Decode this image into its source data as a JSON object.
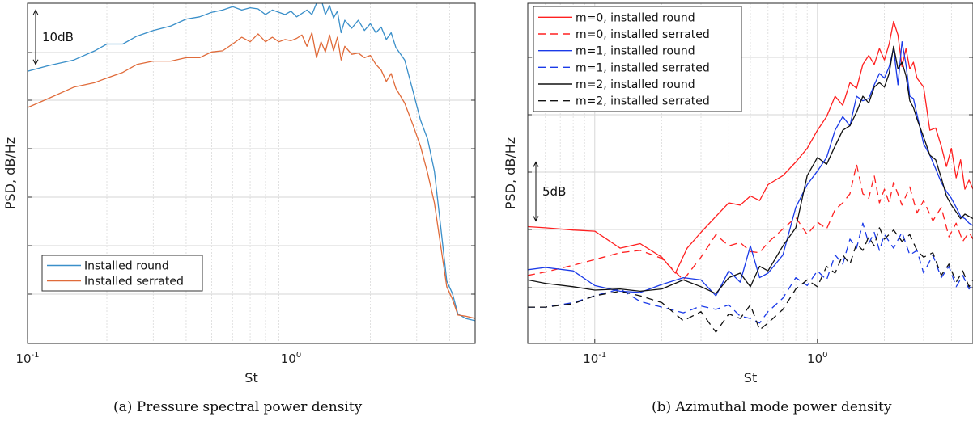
{
  "chart_data": [
    {
      "id": "a",
      "type": "line",
      "caption": "(a) Pressure spectral power density",
      "xlabel": "St",
      "ylabel": "PSD, dB/Hz",
      "xscale": "log",
      "xlim": [
        0.1,
        5.0
      ],
      "ylim": [
        0,
        30
      ],
      "grid": true,
      "xticks": [
        {
          "value": 0.1,
          "base": "10",
          "exp": "-1"
        },
        {
          "value": 1.0,
          "base": "10",
          "exp": "0"
        }
      ],
      "scale_marker": {
        "label": "10dB",
        "y_from": 29.4,
        "y_to": 24.6
      },
      "legend": {
        "position": "bottom-left"
      },
      "series": [
        {
          "name": "Installed round",
          "color": "#3a8fc9",
          "dash": "",
          "x": [
            0.1,
            0.12,
            0.15,
            0.18,
            0.2,
            0.23,
            0.26,
            0.3,
            0.35,
            0.4,
            0.45,
            0.5,
            0.55,
            0.6,
            0.65,
            0.7,
            0.75,
            0.8,
            0.85,
            0.9,
            0.95,
            1.0,
            1.05,
            1.1,
            1.15,
            1.2,
            1.25,
            1.3,
            1.35,
            1.4,
            1.45,
            1.5,
            1.55,
            1.6,
            1.7,
            1.8,
            1.9,
            2.0,
            2.1,
            2.2,
            2.3,
            2.4,
            2.5,
            2.7,
            2.9,
            3.1,
            3.3,
            3.5,
            3.7,
            3.9,
            4.1,
            4.3,
            4.6,
            5.0
          ],
          "y": [
            24.0,
            24.5,
            25.0,
            25.8,
            26.4,
            26.4,
            27.1,
            27.6,
            28.0,
            28.6,
            28.8,
            29.2,
            29.4,
            29.7,
            29.4,
            29.6,
            29.5,
            29.0,
            29.4,
            29.2,
            29.0,
            29.3,
            28.8,
            29.1,
            29.4,
            29.0,
            30.0,
            30.4,
            29.0,
            29.8,
            28.7,
            29.3,
            27.4,
            28.5,
            27.8,
            28.5,
            27.6,
            28.2,
            27.4,
            27.9,
            26.8,
            27.4,
            26.1,
            25.0,
            22.3,
            19.7,
            18.0,
            15.2,
            10.3,
            5.5,
            4.4,
            2.6,
            2.2,
            2.0
          ]
        },
        {
          "name": "Installed serrated",
          "color": "#e06b3a",
          "dash": "",
          "x": [
            0.1,
            0.12,
            0.15,
            0.18,
            0.2,
            0.23,
            0.26,
            0.3,
            0.35,
            0.4,
            0.45,
            0.5,
            0.55,
            0.6,
            0.65,
            0.7,
            0.75,
            0.8,
            0.85,
            0.9,
            0.95,
            1.0,
            1.05,
            1.1,
            1.15,
            1.2,
            1.25,
            1.3,
            1.35,
            1.4,
            1.45,
            1.5,
            1.55,
            1.6,
            1.7,
            1.8,
            1.9,
            2.0,
            2.1,
            2.2,
            2.3,
            2.4,
            2.5,
            2.7,
            2.9,
            3.1,
            3.3,
            3.5,
            3.7,
            3.9,
            4.1,
            4.3,
            4.6,
            5.0
          ],
          "y": [
            20.8,
            21.6,
            22.6,
            23.0,
            23.4,
            23.9,
            24.6,
            24.9,
            24.9,
            25.2,
            25.2,
            25.7,
            25.8,
            26.4,
            27.0,
            26.6,
            27.3,
            26.6,
            27.0,
            26.6,
            26.8,
            26.7,
            26.9,
            27.2,
            26.2,
            27.4,
            25.2,
            26.6,
            25.7,
            27.2,
            25.8,
            27.0,
            25.0,
            26.2,
            25.5,
            25.6,
            25.2,
            25.4,
            24.6,
            24.1,
            23.1,
            23.8,
            22.5,
            21.2,
            19.3,
            17.4,
            15.0,
            12.4,
            8.6,
            5.0,
            3.9,
            2.5,
            2.4,
            2.2
          ]
        }
      ]
    },
    {
      "id": "b",
      "type": "line",
      "caption": "(b) Azimuthal mode power density",
      "xlabel": "St",
      "ylabel": "PSD, dB/Hz",
      "xscale": "log",
      "xlim": [
        0.05,
        5.0
      ],
      "ylim": [
        0,
        30
      ],
      "grid": true,
      "xticks": [
        {
          "value": 0.1,
          "base": "10",
          "exp": "-1"
        },
        {
          "value": 1.0,
          "base": "10",
          "exp": "0"
        }
      ],
      "scale_marker": {
        "label": "5dB",
        "y_from": 16.0,
        "y_to": 10.8
      },
      "legend": {
        "position": "top-left"
      },
      "series": [
        {
          "name": "m=0, installed round",
          "color": "#ff2020",
          "dash": "",
          "x": [
            0.05,
            0.06,
            0.08,
            0.1,
            0.13,
            0.16,
            0.2,
            0.23,
            0.26,
            0.3,
            0.35,
            0.4,
            0.45,
            0.5,
            0.55,
            0.6,
            0.7,
            0.8,
            0.9,
            1.0,
            1.1,
            1.2,
            1.3,
            1.4,
            1.5,
            1.6,
            1.7,
            1.8,
            1.9,
            2.0,
            2.1,
            2.2,
            2.3,
            2.4,
            2.5,
            2.6,
            2.7,
            2.8,
            3.0,
            3.2,
            3.4,
            3.6,
            3.8,
            4.0,
            4.2,
            4.4,
            4.6,
            4.8,
            5.0
          ],
          "y": [
            10.3,
            10.2,
            10.0,
            9.9,
            8.4,
            8.8,
            7.6,
            6.2,
            8.4,
            9.8,
            11.2,
            12.4,
            12.2,
            13.0,
            12.6,
            14.0,
            14.8,
            16.0,
            17.2,
            18.8,
            20.0,
            21.8,
            21.0,
            23.0,
            22.5,
            24.6,
            25.4,
            24.6,
            26.0,
            25.0,
            26.4,
            28.4,
            27.2,
            24.4,
            26.0,
            24.2,
            24.8,
            23.4,
            22.6,
            18.8,
            19.0,
            17.4,
            15.6,
            17.2,
            14.6,
            16.2,
            13.6,
            14.4,
            13.6
          ]
        },
        {
          "name": "m=0, installed serrated",
          "color": "#ff2020",
          "dash": "9,6",
          "x": [
            0.05,
            0.06,
            0.08,
            0.1,
            0.13,
            0.16,
            0.2,
            0.25,
            0.3,
            0.35,
            0.4,
            0.45,
            0.5,
            0.55,
            0.6,
            0.7,
            0.8,
            0.9,
            1.0,
            1.1,
            1.2,
            1.3,
            1.4,
            1.5,
            1.6,
            1.7,
            1.8,
            1.9,
            2.0,
            2.1,
            2.2,
            2.4,
            2.6,
            2.8,
            3.0,
            3.3,
            3.6,
            3.9,
            4.2,
            4.5,
            4.8,
            5.0
          ],
          "y": [
            6.0,
            6.3,
            6.9,
            7.4,
            8.0,
            8.2,
            7.5,
            5.6,
            7.6,
            9.6,
            8.6,
            8.9,
            8.1,
            8.0,
            8.9,
            10.1,
            11.1,
            9.6,
            10.7,
            10.1,
            11.8,
            12.4,
            13.2,
            15.8,
            13.2,
            12.8,
            14.8,
            12.4,
            13.6,
            12.4,
            14.2,
            12.2,
            13.8,
            11.5,
            12.6,
            10.8,
            12.0,
            9.4,
            10.6,
            9.0,
            9.8,
            9.2
          ]
        },
        {
          "name": "m=1, installed round",
          "color": "#1a3ae8",
          "dash": "",
          "x": [
            0.05,
            0.06,
            0.08,
            0.1,
            0.13,
            0.16,
            0.2,
            0.25,
            0.3,
            0.35,
            0.4,
            0.45,
            0.5,
            0.55,
            0.6,
            0.7,
            0.8,
            0.9,
            1.0,
            1.1,
            1.2,
            1.3,
            1.4,
            1.5,
            1.6,
            1.7,
            1.8,
            1.9,
            2.0,
            2.1,
            2.2,
            2.3,
            2.4,
            2.5,
            2.6,
            2.7,
            2.8,
            3.0,
            3.2,
            3.4,
            3.6,
            3.8,
            4.0,
            4.2,
            4.4,
            4.6,
            4.8,
            5.0
          ],
          "y": [
            6.5,
            6.7,
            6.4,
            5.1,
            4.6,
            4.5,
            5.2,
            5.8,
            5.6,
            4.2,
            6.4,
            5.4,
            8.6,
            5.8,
            6.2,
            7.8,
            12.0,
            14.0,
            15.2,
            16.4,
            18.8,
            20.0,
            19.2,
            21.8,
            21.4,
            21.6,
            22.8,
            23.8,
            23.4,
            24.4,
            26.0,
            22.8,
            26.6,
            24.6,
            21.8,
            21.6,
            20.2,
            17.6,
            16.6,
            15.4,
            14.2,
            13.4,
            12.8,
            12.0,
            11.2,
            11.0,
            10.6,
            10.4
          ]
        },
        {
          "name": "m=1, installed serrated",
          "color": "#1a3ae8",
          "dash": "9,6",
          "x": [
            0.05,
            0.06,
            0.08,
            0.1,
            0.13,
            0.16,
            0.2,
            0.25,
            0.3,
            0.35,
            0.4,
            0.45,
            0.5,
            0.55,
            0.6,
            0.7,
            0.8,
            0.9,
            1.0,
            1.1,
            1.2,
            1.3,
            1.4,
            1.5,
            1.6,
            1.7,
            1.8,
            1.9,
            2.0,
            2.2,
            2.4,
            2.6,
            2.8,
            3.0,
            3.3,
            3.6,
            3.9,
            4.2,
            4.5,
            4.8,
            5.0
          ],
          "y": [
            3.2,
            3.2,
            3.6,
            4.2,
            4.8,
            3.7,
            3.2,
            2.7,
            3.3,
            3.0,
            3.4,
            2.4,
            2.2,
            1.8,
            2.8,
            4.0,
            5.8,
            5.1,
            6.4,
            5.6,
            7.8,
            7.0,
            9.2,
            8.4,
            10.6,
            8.8,
            9.8,
            8.2,
            9.6,
            8.4,
            9.8,
            7.8,
            8.2,
            6.2,
            7.8,
            5.8,
            6.8,
            5.0,
            6.0,
            4.8,
            5.2
          ]
        },
        {
          "name": "m=2, installed round",
          "color": "#111111",
          "dash": "",
          "x": [
            0.05,
            0.06,
            0.08,
            0.1,
            0.13,
            0.16,
            0.2,
            0.25,
            0.3,
            0.35,
            0.4,
            0.45,
            0.5,
            0.55,
            0.6,
            0.7,
            0.8,
            0.9,
            1.0,
            1.1,
            1.2,
            1.3,
            1.4,
            1.5,
            1.6,
            1.7,
            1.8,
            1.9,
            2.0,
            2.1,
            2.2,
            2.3,
            2.4,
            2.5,
            2.6,
            2.7,
            2.8,
            3.0,
            3.2,
            3.4,
            3.6,
            3.8,
            4.0,
            4.2,
            4.4,
            4.6,
            4.8,
            5.0
          ],
          "y": [
            5.6,
            5.3,
            5.0,
            4.7,
            4.8,
            4.6,
            4.8,
            5.6,
            5.0,
            4.4,
            5.8,
            6.2,
            5.0,
            6.8,
            6.4,
            8.6,
            10.2,
            14.8,
            16.4,
            15.8,
            17.4,
            18.8,
            19.2,
            20.4,
            21.8,
            21.2,
            22.6,
            23.0,
            22.6,
            23.8,
            26.2,
            24.2,
            24.8,
            23.6,
            21.4,
            20.8,
            19.8,
            18.2,
            16.6,
            16.2,
            14.6,
            13.0,
            12.2,
            11.6,
            11.0,
            11.4,
            11.2,
            11.0
          ]
        },
        {
          "name": "m=2, installed serrated",
          "color": "#111111",
          "dash": "9,6",
          "x": [
            0.05,
            0.06,
            0.08,
            0.1,
            0.13,
            0.16,
            0.2,
            0.25,
            0.3,
            0.35,
            0.4,
            0.45,
            0.5,
            0.55,
            0.6,
            0.7,
            0.8,
            0.9,
            1.0,
            1.1,
            1.2,
            1.3,
            1.4,
            1.5,
            1.6,
            1.7,
            1.8,
            1.9,
            2.0,
            2.2,
            2.4,
            2.6,
            2.8,
            3.0,
            3.3,
            3.6,
            3.9,
            4.2,
            4.5,
            4.8,
            5.0
          ],
          "y": [
            3.2,
            3.2,
            3.5,
            4.2,
            4.6,
            4.2,
            3.6,
            2.0,
            2.8,
            1.0,
            2.6,
            2.2,
            3.4,
            1.2,
            1.8,
            3.0,
            4.8,
            5.6,
            5.0,
            6.8,
            6.2,
            7.8,
            7.0,
            8.8,
            8.2,
            9.4,
            8.6,
            10.2,
            9.2,
            10.0,
            9.0,
            9.6,
            8.2,
            7.6,
            8.0,
            6.0,
            7.0,
            5.4,
            6.4,
            5.0,
            5.6
          ]
        }
      ]
    }
  ]
}
